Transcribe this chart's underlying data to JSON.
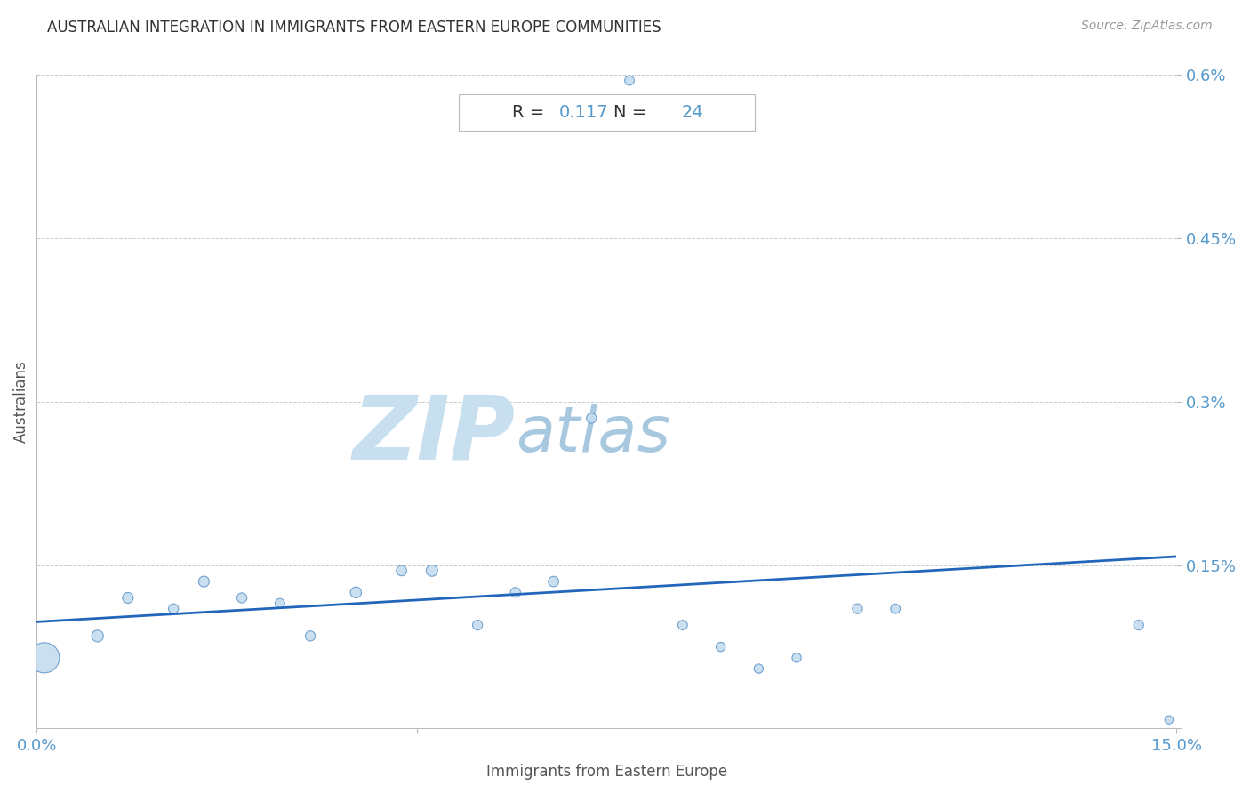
{
  "title": "AUSTRALIAN INTEGRATION IN IMMIGRANTS FROM EASTERN EUROPE COMMUNITIES",
  "source": "Source: ZipAtlas.com",
  "xlabel": "Immigrants from Eastern Europe",
  "ylabel": "Australians",
  "R_val": "0.117",
  "N_val": "24",
  "xlim": [
    0.0,
    0.15
  ],
  "ylim": [
    0.0,
    0.006
  ],
  "yticks": [
    0.0,
    0.0015,
    0.003,
    0.0045,
    0.006
  ],
  "ytick_labels": [
    "",
    "0.15%",
    "0.3%",
    "0.45%",
    "0.6%"
  ],
  "xtick_vals": [
    0.0,
    0.05,
    0.1,
    0.15
  ],
  "xtick_labels": [
    "0.0%",
    "",
    "",
    "15.0%"
  ],
  "scatter_x": [
    0.001,
    0.008,
    0.012,
    0.018,
    0.022,
    0.027,
    0.032,
    0.036,
    0.042,
    0.048,
    0.052,
    0.058,
    0.063,
    0.068,
    0.073,
    0.078,
    0.085,
    0.09,
    0.095,
    0.1,
    0.108,
    0.113,
    0.145,
    0.149
  ],
  "scatter_y": [
    0.00065,
    0.00085,
    0.0012,
    0.0011,
    0.00135,
    0.0012,
    0.00115,
    0.00085,
    0.00125,
    0.00145,
    0.00145,
    0.00095,
    0.00125,
    0.00135,
    0.00285,
    0.00595,
    0.00095,
    0.00075,
    0.00055,
    0.00065,
    0.0011,
    0.0011,
    0.00095,
    8e-05
  ],
  "scatter_sizes": [
    600,
    90,
    75,
    65,
    75,
    65,
    60,
    65,
    80,
    70,
    85,
    65,
    65,
    70,
    65,
    60,
    60,
    55,
    55,
    55,
    65,
    60,
    65,
    45
  ],
  "scatter_color": "#c5ddf0",
  "scatter_edgecolor": "#6699cc",
  "line_color": "#2266bb",
  "line_x": [
    0.0,
    0.15
  ],
  "line_y": [
    0.00098,
    0.00158
  ],
  "background_color": "#ffffff",
  "grid_color": "#cccccc",
  "title_color": "#333333",
  "axis_label_color": "#555555",
  "tick_label_color_y": "#5599cc",
  "tick_label_color_x": "#5599cc",
  "annotation_box_facecolor": "#ffffff",
  "annotation_box_edgecolor": "#bbbbbb",
  "annotation_R_color": "#333333",
  "annotation_N_color": "#5599cc",
  "watermark_ZIP_color": "#c8dff0",
  "watermark_atlas_color": "#a8c8e0",
  "watermark_fontsize": 72
}
